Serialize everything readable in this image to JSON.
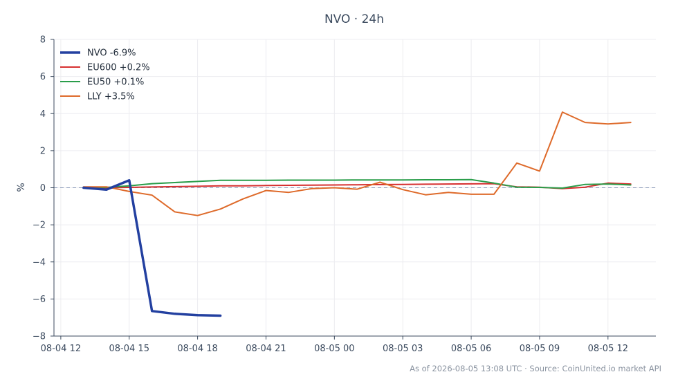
{
  "chart_data": {
    "type": "line",
    "title": "NVO · 24h",
    "xlabel": "",
    "ylabel": "%",
    "xlim": [
      -0.3,
      26.1
    ],
    "ylim": [
      -8,
      8
    ],
    "yticks": [
      8,
      6,
      4,
      2,
      0,
      -2,
      -4,
      -6,
      -8
    ],
    "ytick_labels": [
      "8",
      "6",
      "4",
      "2",
      "0",
      "−2",
      "−4",
      "−6",
      "−8"
    ],
    "xticks": [
      0,
      3,
      6,
      9,
      12,
      15,
      18,
      21,
      24
    ],
    "xtick_labels": [
      "08-04 12",
      "08-04 15",
      "08-04 18",
      "08-04 21",
      "08-05 00",
      "08-05 03",
      "08-05 06",
      "08-05 09",
      "08-05 12"
    ],
    "grid": true,
    "zero_line": true,
    "legend_position": "top-left",
    "series": [
      {
        "name": "NVO -6.9%",
        "color": "#2340a0",
        "x": [
          1,
          2,
          3,
          4,
          5,
          6,
          7
        ],
        "y": [
          0.0,
          -0.1,
          0.4,
          -6.65,
          -6.8,
          -6.87,
          -6.9
        ]
      },
      {
        "name": "EU600 +0.2%",
        "color": "#d62f2f",
        "x": [
          1,
          2,
          3,
          4,
          5,
          6,
          7,
          8,
          9,
          10,
          11,
          12,
          13,
          14,
          15,
          16,
          17,
          18,
          19,
          20,
          21,
          22,
          23,
          24,
          25
        ],
        "y": [
          0.0,
          0.0,
          0.02,
          0.04,
          0.06,
          0.08,
          0.1,
          0.1,
          0.12,
          0.13,
          0.14,
          0.15,
          0.16,
          0.17,
          0.18,
          0.19,
          0.2,
          0.21,
          0.22,
          0.05,
          0.03,
          -0.05,
          0.03,
          0.25,
          0.2
        ]
      },
      {
        "name": "EU50 +0.1%",
        "color": "#2a9d4a",
        "x": [
          1,
          2,
          3,
          4,
          5,
          6,
          7,
          8,
          9,
          10,
          11,
          12,
          13,
          14,
          15,
          16,
          17,
          18,
          19,
          20,
          21,
          22,
          23,
          24,
          25
        ],
        "y": [
          0.0,
          0.02,
          0.1,
          0.22,
          0.28,
          0.34,
          0.4,
          0.4,
          0.4,
          0.41,
          0.41,
          0.41,
          0.42,
          0.42,
          0.42,
          0.43,
          0.43,
          0.44,
          0.25,
          0.03,
          0.02,
          -0.02,
          0.18,
          0.2,
          0.15
        ]
      },
      {
        "name": "LLY +3.5%",
        "color": "#de6a2a",
        "x": [
          1,
          2,
          3,
          4,
          5,
          6,
          7,
          8,
          9,
          10,
          11,
          12,
          13,
          14,
          15,
          16,
          17,
          18,
          19,
          20,
          21,
          22,
          23,
          24,
          25
        ],
        "y": [
          0.05,
          0.05,
          -0.2,
          -0.4,
          -1.3,
          -1.5,
          -1.15,
          -0.6,
          -0.15,
          -0.25,
          -0.05,
          0.0,
          -0.08,
          0.3,
          -0.1,
          -0.38,
          -0.25,
          -0.35,
          -0.35,
          1.33,
          0.9,
          4.08,
          3.52,
          3.44,
          3.52
        ]
      }
    ]
  },
  "footer": "As of 2026-08-05 13:08 UTC · Source: CoinUnited.io market API"
}
